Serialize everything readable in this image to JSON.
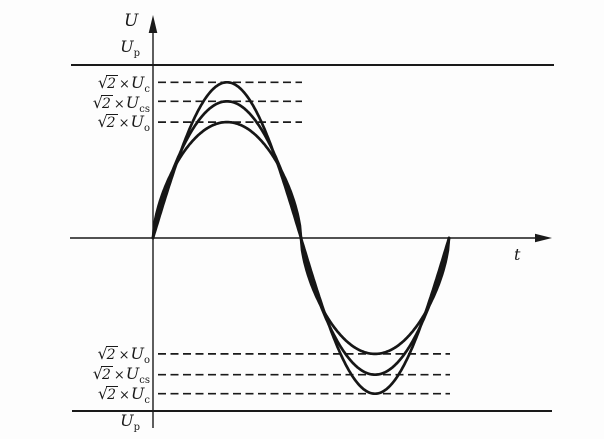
{
  "ink_color": "#1a1a1a",
  "background_color": "#fdfdfd",
  "axes": {
    "y_label": "U",
    "x_label": "t"
  },
  "reference_labels": {
    "top": {
      "base": "U",
      "sub": "p"
    },
    "bottom": {
      "base": "U",
      "sub": "p"
    }
  },
  "peak_labels_top": [
    {
      "sqrt_sign": "√",
      "radicand": "2",
      "times": "×",
      "base": "U",
      "sub": "c"
    },
    {
      "sqrt_sign": "√",
      "radicand": "2",
      "times": "×",
      "base": "U",
      "sub": "cs"
    },
    {
      "sqrt_sign": "√",
      "radicand": "2",
      "times": "×",
      "base": "U",
      "sub": "o"
    }
  ],
  "peak_labels_bottom": [
    {
      "sqrt_sign": "√",
      "radicand": "2",
      "times": "×",
      "base": "U",
      "sub": "o"
    },
    {
      "sqrt_sign": "√",
      "radicand": "2",
      "times": "×",
      "base": "U",
      "sub": "cs"
    },
    {
      "sqrt_sign": "√",
      "radicand": "2",
      "times": "×",
      "base": "U",
      "sub": "c"
    }
  ],
  "chart_data": {
    "type": "line",
    "title": "",
    "xlabel": "t",
    "ylabel": "U",
    "x_range_rad": [
      0,
      6.2832
    ],
    "grid": false,
    "legend": "none",
    "description": "Three in-phase sinusoidal voltage waveforms over one full period; smaller-amplitude waves have flattened crests. Dashed lines mark each peak level (±√2×U) and solid horizontal lines mark the ±Up limits.",
    "series": [
      {
        "id": "uc",
        "name": "√2×Uc",
        "waveform": "sine",
        "relative_amplitude": 0.9,
        "flatness": 1.0,
        "zero_crossings_rad": [
          0,
          3.1416,
          6.2832
        ]
      },
      {
        "id": "ucs",
        "name": "√2×Ucs",
        "waveform": "flattened-sine",
        "relative_amplitude": 0.79,
        "flatness": 0.78,
        "zero_crossings_rad": [
          0,
          3.1416,
          6.2832
        ]
      },
      {
        "id": "uo",
        "name": "√2×Uo",
        "waveform": "flattened-sine",
        "relative_amplitude": 0.67,
        "flatness": 0.6,
        "zero_crossings_rad": [
          0,
          3.1416,
          6.2832
        ]
      }
    ],
    "reference_levels": [
      {
        "id": "up_pos",
        "label": "Up",
        "relative_value": 1.0
      },
      {
        "id": "up_neg",
        "label": "-Up",
        "relative_value": -1.0
      }
    ]
  }
}
